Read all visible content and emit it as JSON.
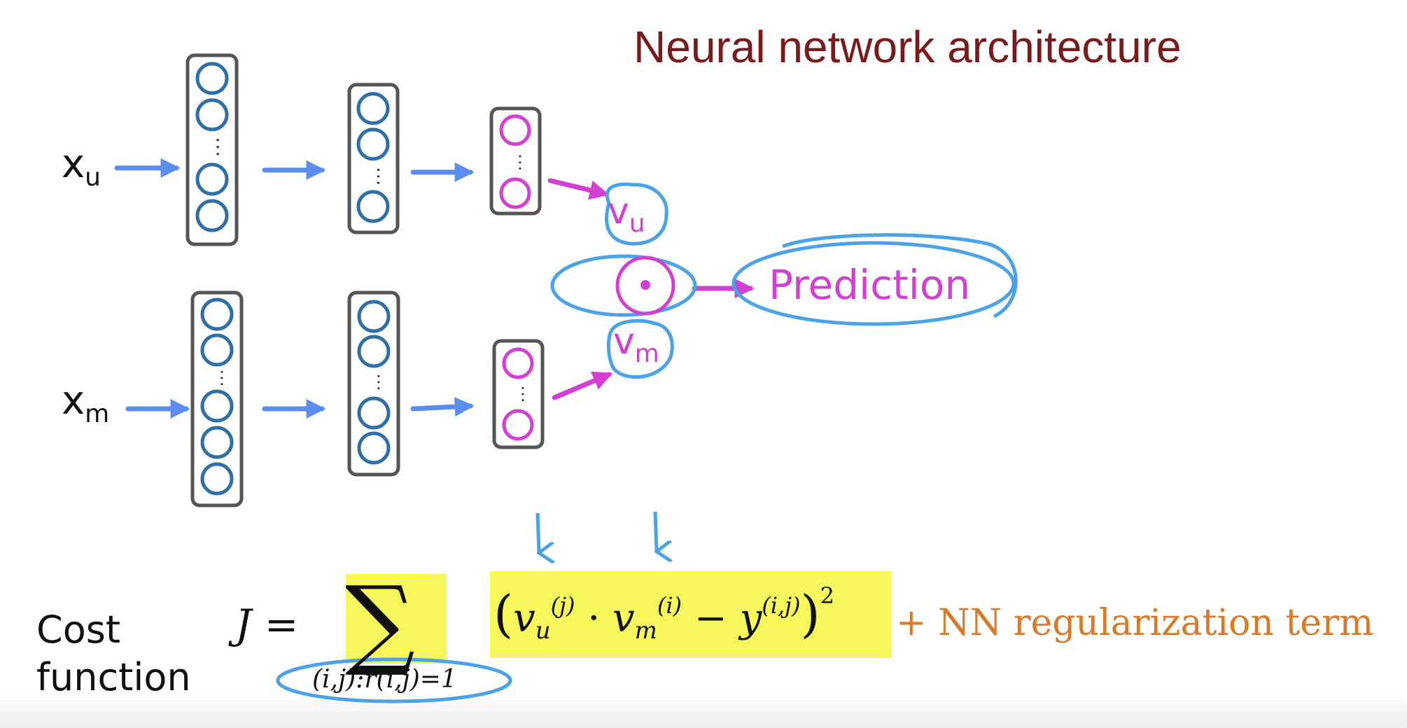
{
  "title": "Neural network architecture",
  "inputs": {
    "user": {
      "base": "x",
      "sub": "u"
    },
    "movie": {
      "base": "x",
      "sub": "m"
    }
  },
  "vectors": {
    "user": {
      "base": "v",
      "sub": "u"
    },
    "movie": {
      "base": "v",
      "sub": "m"
    }
  },
  "dot_symbol": "•",
  "prediction_label": "Prediction",
  "cost": {
    "label": "Cost function",
    "lhs": "J =",
    "sum_symbol": "∑",
    "sum_subscript": "(i,j):r(i,j)=1",
    "expression": {
      "open": "(",
      "v1": "v",
      "v1_sub": "u",
      "v1_sup": "(j)",
      "dot": " · ",
      "v2": "v",
      "v2_sub": "m",
      "v2_sup": "(i)",
      "minus": " − ",
      "y": "y",
      "y_sup": "(i,j)",
      "close": ")",
      "power": "2"
    },
    "regularization": "+ NN regularization  term"
  },
  "colors": {
    "title": "#7a1b1b",
    "arrow_blue": "#5b8def",
    "arrow_magenta": "#d23fd2",
    "node_blue": "#2f6fa8",
    "node_magenta": "#d23fd2",
    "highlight": "#f6f75a",
    "annotation_blue": "#4aa3e6",
    "regularization": "#d97a2b"
  }
}
